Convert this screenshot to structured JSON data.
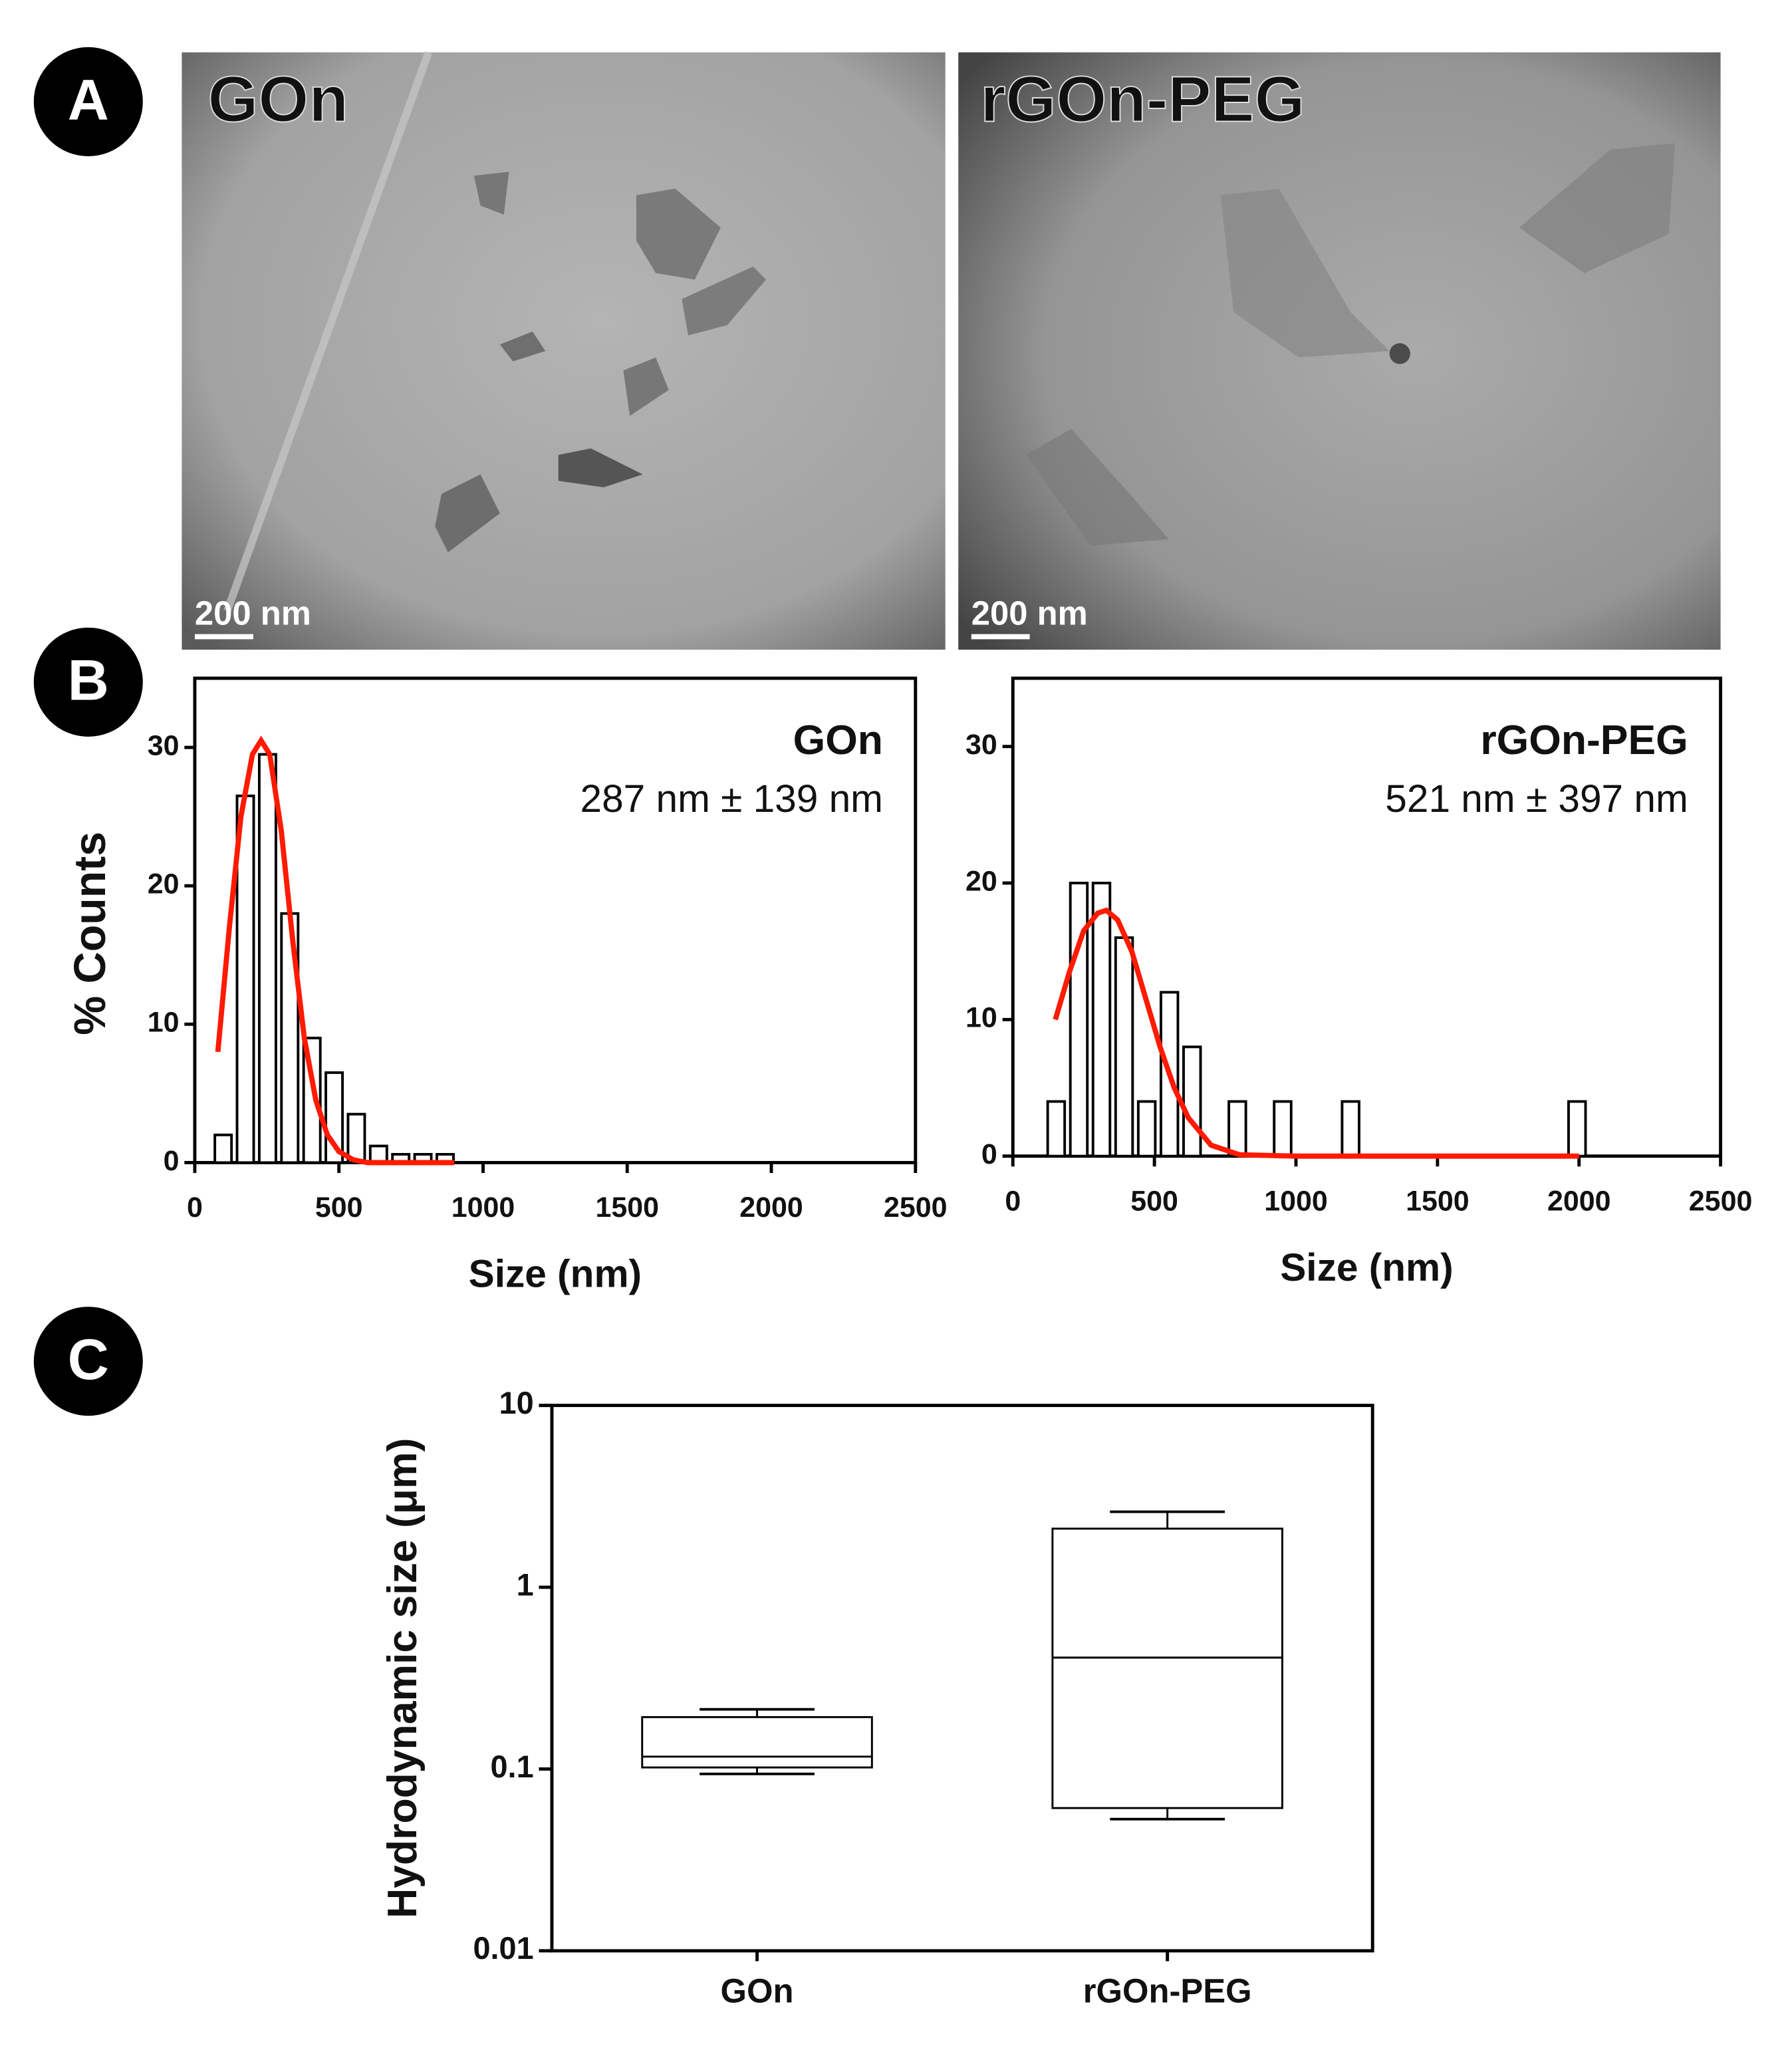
{
  "panel_labels": [
    "A",
    "B",
    "C"
  ],
  "images": [
    {
      "label": "GOn",
      "scale_bar": "200 nm"
    },
    {
      "label": "rGOn-PEG",
      "scale_bar": "200 nm"
    }
  ],
  "chart_data": [
    {
      "type": "histogram",
      "title": "GOn",
      "subtitle": "287 nm ± 139 nm",
      "xlabel": "Size (nm)",
      "ylabel": "% Counts",
      "bins": [
        60,
        137,
        214,
        291,
        368,
        445,
        522,
        599,
        676,
        753,
        830,
        907
      ],
      "counts": [
        2,
        26.5,
        29.5,
        18,
        9,
        6.5,
        3.5,
        1.2,
        0.6,
        0.6,
        0.6
      ],
      "color": "#ffffff",
      "fit": {
        "color": "#ff1a00",
        "x": [
          80,
          120,
          160,
          200,
          230,
          260,
          300,
          340,
          380,
          420,
          460,
          500,
          550,
          600,
          700,
          800,
          900
        ],
        "values": [
          8,
          17,
          25,
          29.5,
          30.5,
          29.5,
          24,
          16,
          9,
          4.5,
          2,
          0.8,
          0.2,
          0,
          0,
          0,
          0
        ]
      },
      "xlim": [
        0,
        2500
      ],
      "xticks": [
        0,
        500,
        1000,
        1500,
        2000,
        2500
      ],
      "ylim": [
        0,
        35
      ],
      "yticks": [
        0,
        10,
        20,
        30
      ]
    },
    {
      "type": "histogram",
      "title": "rGOn-PEG",
      "subtitle": "521 nm ± 397 nm",
      "xlabel": "Size (nm)",
      "bins": [
        113,
        193,
        273,
        353,
        433,
        513,
        593,
        673,
        753,
        833,
        913,
        993,
        1073,
        1153,
        1233,
        1313,
        1393,
        1473,
        1553,
        1633,
        1713,
        1793,
        1873,
        1953,
        2033
      ],
      "counts": [
        4,
        20,
        20,
        16,
        4,
        12,
        8,
        0,
        4,
        0,
        4,
        0,
        0,
        4,
        0,
        0,
        0,
        0,
        0,
        0,
        0,
        0,
        0,
        4
      ],
      "color": "#ffffff",
      "fit": {
        "color": "#ff1a00",
        "x": [
          150,
          200,
          250,
          300,
          330,
          370,
          420,
          470,
          520,
          570,
          620,
          700,
          800,
          1000,
          1500,
          2000
        ],
        "values": [
          10,
          13.5,
          16.5,
          17.8,
          18,
          17.3,
          15,
          11.5,
          8,
          5,
          2.8,
          0.8,
          0.1,
          0,
          0,
          0
        ]
      },
      "xlim": [
        0,
        2500
      ],
      "xticks": [
        0,
        500,
        1000,
        1500,
        2000,
        2500
      ],
      "ylim": [
        0,
        35
      ],
      "yticks": [
        0,
        10,
        20,
        30
      ]
    },
    {
      "type": "box",
      "ylabel": "Hydrodynamic size (μm)",
      "categories": [
        "GOn",
        "rGOn-PEG"
      ],
      "boxes": [
        {
          "min": 0.094,
          "q1": 0.102,
          "median": 0.117,
          "q3": 0.193,
          "max": 0.213
        },
        {
          "min": 0.053,
          "q1": 0.061,
          "median": 0.41,
          "q3": 2.1,
          "max": 2.6
        }
      ],
      "log_y": true,
      "ylim": [
        0.01,
        10
      ],
      "yticks": [
        0.01,
        0.1,
        1,
        10
      ]
    }
  ]
}
